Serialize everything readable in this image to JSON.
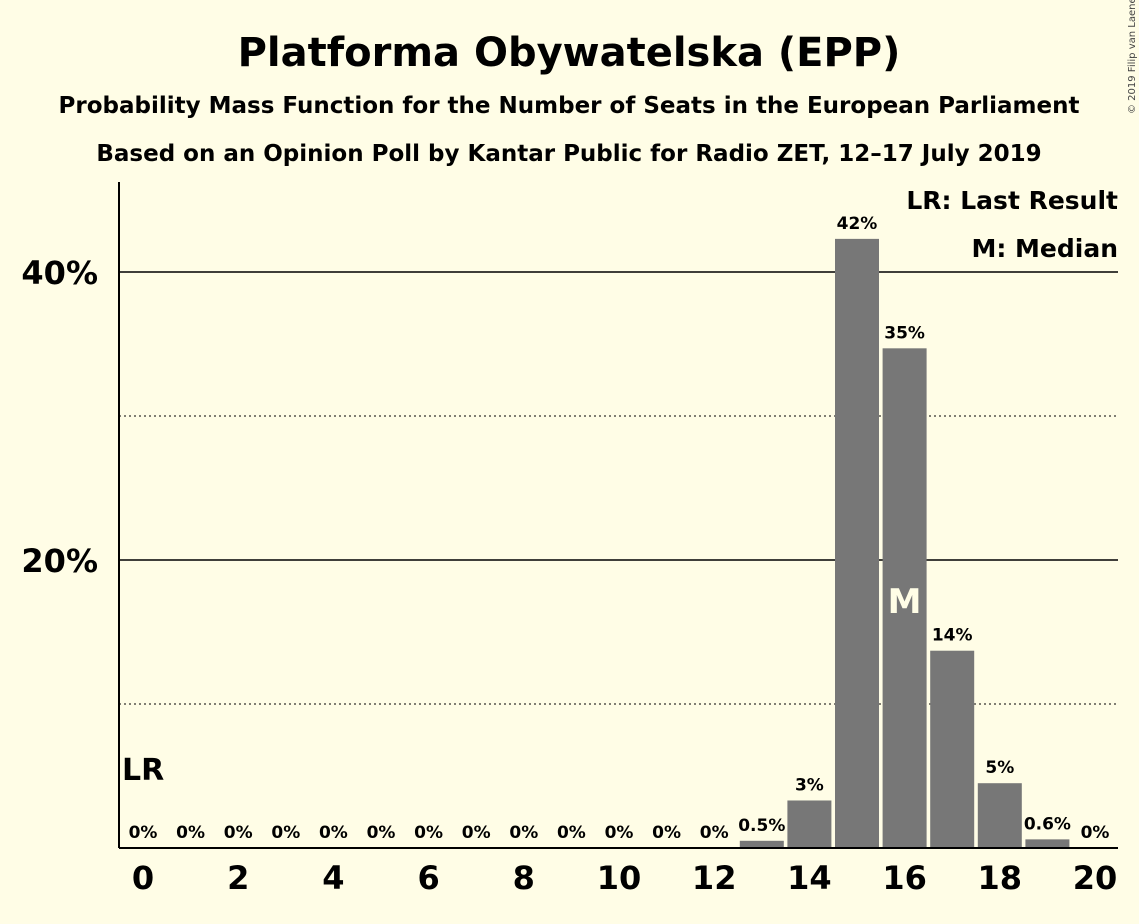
{
  "chart_data": {
    "type": "bar",
    "title": "Platforma Obywatelska (EPP)",
    "subtitle_1": "Probability Mass Function for the Number of Seats in the European Parliament",
    "subtitle_2": "Based on an Opinion Poll by Kantar Public for Radio ZET, 12–17 July 2019",
    "x": [
      0,
      1,
      2,
      3,
      4,
      5,
      6,
      7,
      8,
      9,
      10,
      11,
      12,
      13,
      14,
      15,
      16,
      17,
      18,
      19,
      20
    ],
    "values": [
      0,
      0,
      0,
      0,
      0,
      0,
      0,
      0,
      0,
      0,
      0,
      0,
      0,
      0.5,
      3.3,
      42.3,
      34.7,
      13.7,
      4.5,
      0.6,
      0
    ],
    "labels": [
      "0%",
      "0%",
      "0%",
      "0%",
      "0%",
      "0%",
      "0%",
      "0%",
      "0%",
      "0%",
      "0%",
      "0%",
      "0%",
      "0.5%",
      "3%",
      "42%",
      "35%",
      "14%",
      "5%",
      "0.6%",
      "0%"
    ],
    "xticks": [
      "0",
      "2",
      "4",
      "6",
      "8",
      "10",
      "12",
      "14",
      "16",
      "18",
      "20"
    ],
    "yticks": [
      {
        "value": 20,
        "label": "20%"
      },
      {
        "value": 40,
        "label": "40%"
      }
    ],
    "minor_grid": [
      10,
      30
    ],
    "ylim": [
      0,
      46
    ],
    "last_result": {
      "x": 0,
      "label": "LR"
    },
    "median": {
      "x": 16,
      "label": "M"
    },
    "legend": [
      "LR: Last Result",
      "M: Median"
    ],
    "bar_color": "#777777",
    "background": "#fffde6"
  },
  "credit": "© 2019 Filip van Laenen"
}
